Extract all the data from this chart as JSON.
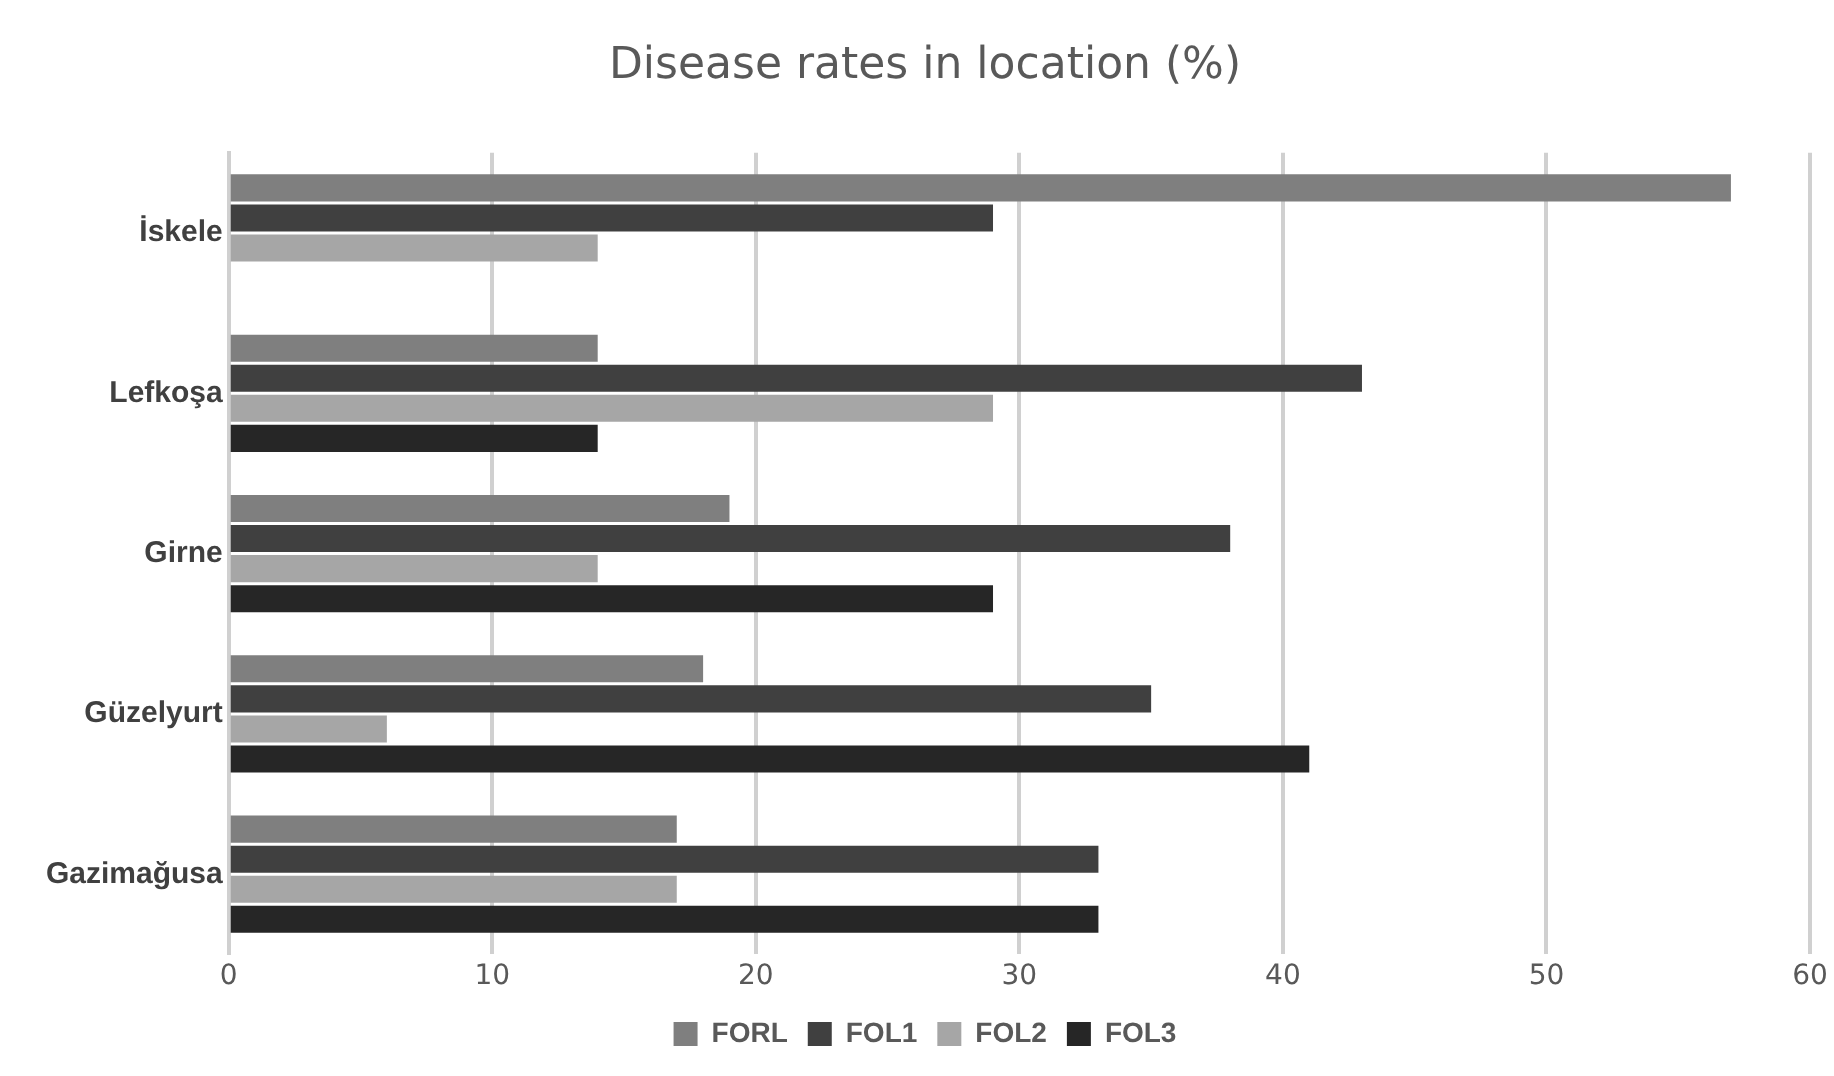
{
  "chart_data": {
    "type": "bar",
    "orientation": "horizontal",
    "title": "Disease rates in location (%)",
    "categories": [
      "İskele",
      "Lefkoşa",
      "Girne",
      "Güzelyurt",
      "Gazimağusa"
    ],
    "series": [
      {
        "name": "FORL",
        "color": "#7f7f7f",
        "values": [
          57,
          14,
          19,
          18,
          17
        ]
      },
      {
        "name": "FOL1",
        "color": "#404040",
        "values": [
          29,
          43,
          38,
          35,
          33
        ]
      },
      {
        "name": "FOL2",
        "color": "#a6a6a6",
        "values": [
          14,
          29,
          14,
          6,
          17
        ]
      },
      {
        "name": "FOL3",
        "color": "#262626",
        "values": [
          0,
          14,
          29,
          41,
          33
        ]
      }
    ],
    "xlim": [
      0,
      60
    ],
    "xticks": [
      0,
      10,
      20,
      30,
      40,
      50,
      60
    ],
    "grid": "x",
    "legend": "bottom"
  }
}
